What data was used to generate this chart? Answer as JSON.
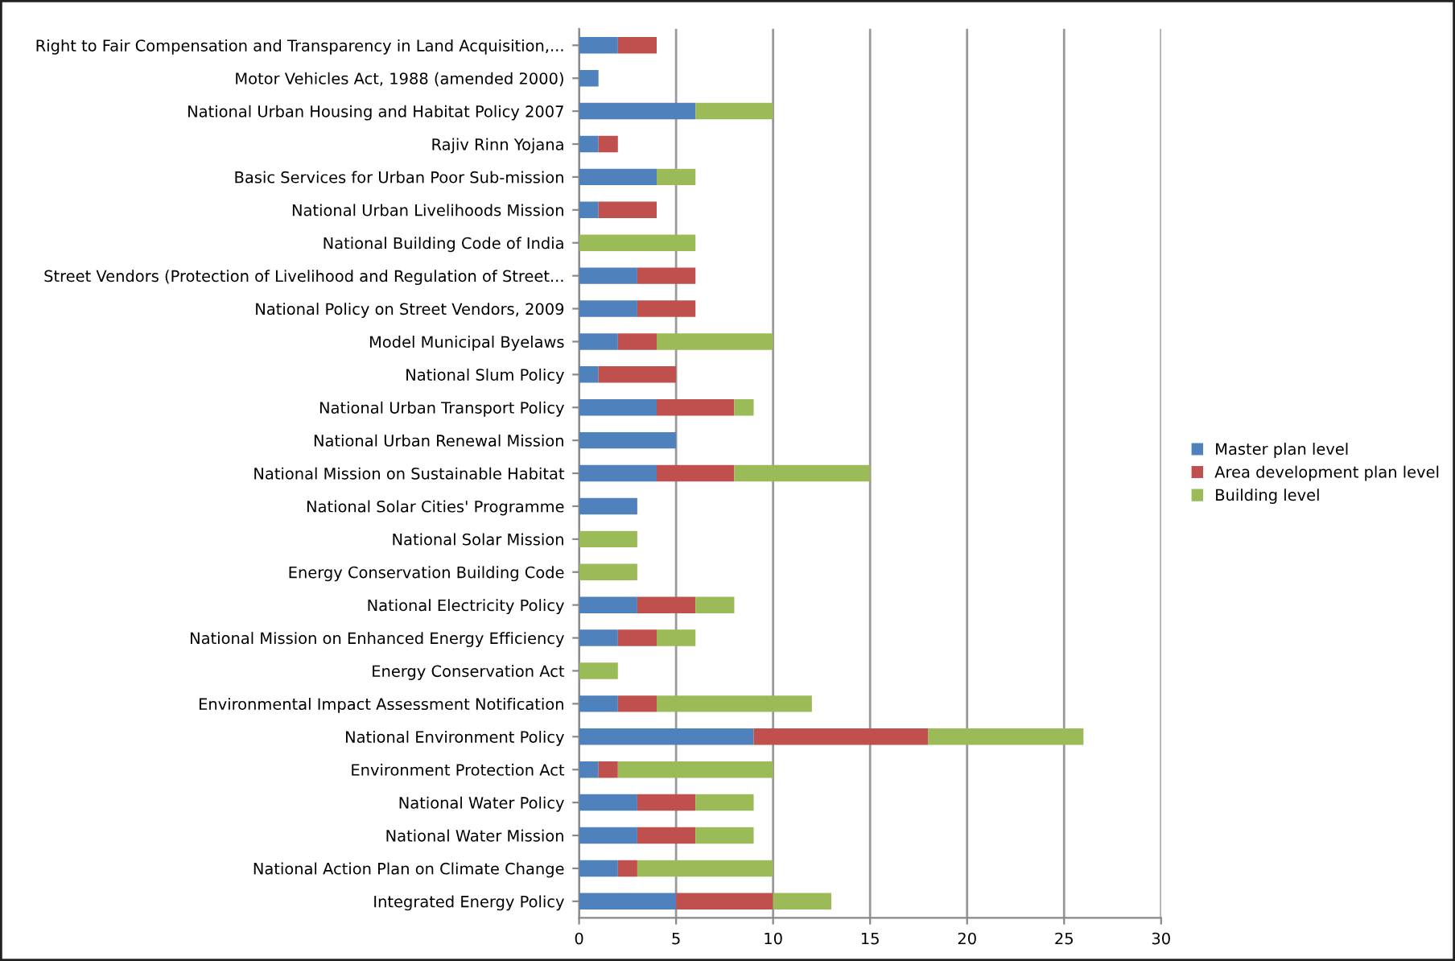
{
  "chart_data": {
    "type": "bar",
    "orientation": "horizontal",
    "stacked": true,
    "categories": [
      "Right to Fair Compensation and Transparency in Land Acquisition,...",
      "Motor Vehicles Act, 1988 (amended 2000)",
      "National Urban Housing and Habitat Policy 2007",
      "Rajiv Rinn Yojana",
      "Basic Services for Urban Poor Sub-mission",
      "National Urban Livelihoods Mission",
      "National Building Code of India",
      "Street Vendors (Protection of Livelihood and Regulation of Street...",
      "National Policy on Street Vendors, 2009",
      "Model Municipal Byelaws",
      "National Slum Policy",
      "National Urban Transport Policy",
      "National Urban Renewal Mission",
      "National Mission on Sustainable Habitat",
      "National Solar Cities' Programme",
      "National Solar Mission",
      "Energy Conservation Building Code",
      "National Electricity Policy",
      "National Mission on Enhanced Energy Efficiency",
      "Energy Conservation Act",
      "Environmental Impact Assessment Notification",
      "National Environment Policy",
      "Environment Protection Act",
      "National Water Policy",
      "National Water Mission",
      "National Action Plan on Climate Change",
      "Integrated Energy Policy"
    ],
    "series": [
      {
        "name": "Master plan level",
        "color": "#4f81bd",
        "values": [
          2,
          1,
          6,
          1,
          4,
          1,
          0,
          3,
          3,
          2,
          1,
          4,
          5,
          4,
          3,
          0,
          0,
          3,
          2,
          0,
          2,
          9,
          1,
          3,
          3,
          2,
          5
        ]
      },
      {
        "name": "Area development plan level",
        "color": "#c0504d",
        "values": [
          2,
          0,
          0,
          1,
          0,
          3,
          0,
          3,
          3,
          2,
          4,
          4,
          0,
          4,
          0,
          0,
          0,
          3,
          2,
          0,
          2,
          9,
          1,
          3,
          3,
          1,
          5
        ]
      },
      {
        "name": "Building level",
        "color": "#9bbb59",
        "values": [
          0,
          0,
          4,
          0,
          2,
          0,
          6,
          0,
          0,
          6,
          0,
          1,
          0,
          7,
          0,
          3,
          3,
          2,
          2,
          2,
          8,
          8,
          8,
          3,
          3,
          7,
          3
        ]
      }
    ],
    "xlim": [
      0,
      30
    ],
    "xticks": [
      0,
      5,
      10,
      15,
      20,
      25,
      30
    ],
    "grid": "x",
    "legend": "right"
  }
}
